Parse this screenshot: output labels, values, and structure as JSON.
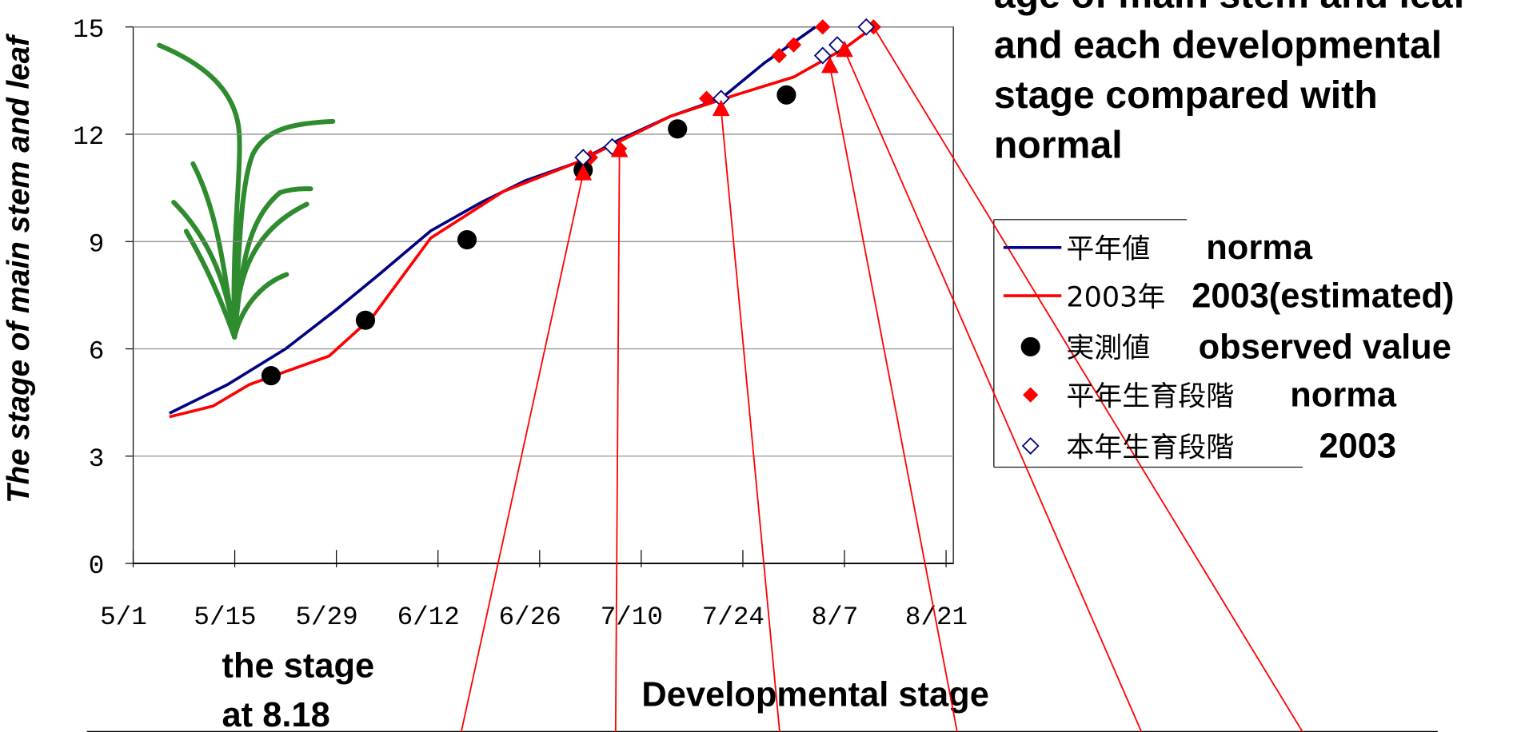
{
  "chart_data": {
    "type": "line",
    "title": [
      "age of main stem and leaf",
      "and each developmental",
      "stage compared with",
      "normal"
    ],
    "y_label": "The stage of main stem and leaf",
    "annotations": [
      "the stage",
      "at 8.18",
      "Developmental stage"
    ],
    "xlim": [
      "5/1",
      "8/22"
    ],
    "xticks": [
      "5/1",
      "5/15",
      "5/29",
      "6/12",
      "6/26",
      "7/10",
      "7/24",
      "8/7",
      "8/21"
    ],
    "ylim": [
      0,
      15
    ],
    "yticks": [
      0,
      3,
      6,
      9,
      12,
      15
    ],
    "grid": true,
    "series": [
      {
        "name": "平年値",
        "label_en": "norma",
        "marker": "line",
        "color": "#000080",
        "x": [
          "5/6",
          "5/14",
          "5/22",
          "5/29",
          "6/4",
          "6/11",
          "6/18",
          "6/24",
          "7/1",
          "7/7",
          "7/14",
          "7/21",
          "7/27",
          "8/3"
        ],
        "values": [
          4.2,
          5.0,
          6.0,
          7.1,
          8.1,
          9.3,
          10.1,
          10.7,
          11.2,
          11.85,
          12.5,
          13.0,
          14.0,
          15.0
        ]
      },
      {
        "name": "2003年",
        "label_en": "2003(estimated)",
        "marker": "line",
        "color": "#ff0000",
        "x": [
          "5/6",
          "5/12",
          "5/17",
          "5/28",
          "6/3",
          "6/11",
          "6/21",
          "7/1",
          "7/14",
          "7/23",
          "7/31",
          "8/7",
          "8/11"
        ],
        "values": [
          4.1,
          4.4,
          5.0,
          5.8,
          6.9,
          9.1,
          10.4,
          11.2,
          12.5,
          13.1,
          13.6,
          14.4,
          15.0
        ]
      },
      {
        "name": "実測値",
        "label_en": "observed value",
        "marker": "circle",
        "color": "#000000",
        "x": [
          "5/20",
          "6/2",
          "6/16",
          "7/2",
          "7/15",
          "7/30"
        ],
        "values": [
          5.25,
          6.8,
          9.05,
          11.0,
          12.15,
          13.1
        ]
      },
      {
        "name": "平年生育段階",
        "label_en": "norma",
        "marker": "diamond",
        "color": "#ff0000",
        "x": [
          "7/3",
          "7/7",
          "7/19",
          "7/29",
          "7/31",
          "8/4",
          "8/11"
        ],
        "values": [
          11.35,
          11.6,
          13.0,
          14.2,
          14.5,
          15.0,
          15.0
        ]
      },
      {
        "name": "本年生育段階",
        "label_en": "2003",
        "marker": "diamond-open",
        "color": "#000080",
        "x": [
          "7/2",
          "7/6",
          "7/21",
          "8/4",
          "8/6",
          "8/10"
        ],
        "values": [
          11.35,
          11.65,
          13.0,
          14.2,
          14.5,
          15.0
        ]
      },
      {
        "marker": "triangle",
        "color": "#ff0000",
        "x": [
          "7/2",
          "7/7",
          "7/21",
          "8/5",
          "8/7"
        ],
        "values": [
          10.9,
          11.55,
          12.7,
          13.9,
          14.35
        ]
      }
    ]
  }
}
